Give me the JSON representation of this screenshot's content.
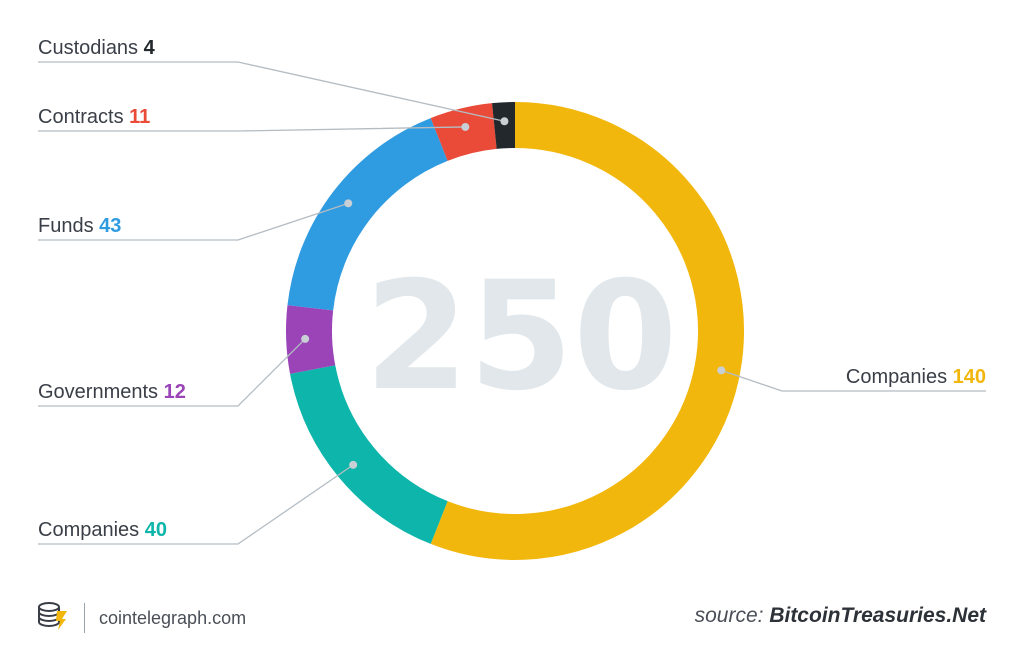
{
  "chart_data": {
    "type": "pie",
    "total_label": "250",
    "slices": [
      {
        "label": "Companies",
        "value": 140,
        "color": "#f2b70d"
      },
      {
        "label": "Companies",
        "value": 40,
        "color": "#0db5aa"
      },
      {
        "label": "Governments",
        "value": 12,
        "color": "#9a44b7"
      },
      {
        "label": "Funds",
        "value": 43,
        "color": "#2f9be0"
      },
      {
        "label": "Contracts",
        "value": 11,
        "color": "#ea4a38"
      },
      {
        "label": "Custodians",
        "value": 4,
        "color": "#23282d"
      }
    ]
  },
  "footer": {
    "site": "cointelegraph.com",
    "source_prefix": "source:",
    "source_name": "BitcoinTreasuries.Net"
  },
  "icons": {
    "logo": "cointelegraph-logo-icon"
  },
  "colors": {
    "label_text": "#3a3f47",
    "leader_line": "#b4bcc3",
    "center_text": "#e1e7ea"
  }
}
